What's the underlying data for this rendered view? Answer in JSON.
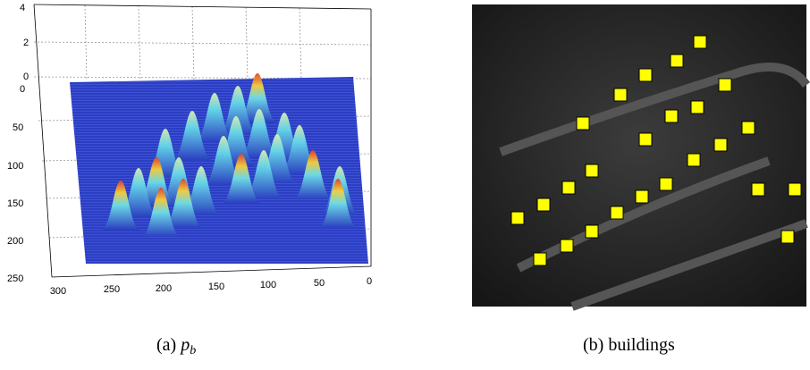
{
  "panel_a": {
    "z_ticks": [
      "4",
      "2",
      "0"
    ],
    "y_ticks": [
      "0",
      "50",
      "100",
      "150",
      "200",
      "250"
    ],
    "x_ticks": [
      "300",
      "250",
      "200",
      "150",
      "100",
      "50",
      "0"
    ],
    "caption": {
      "label": "(a)",
      "symbol": "p",
      "subscript": "b"
    }
  },
  "panel_b": {
    "caption": {
      "label": "(b)",
      "text": "buildings"
    }
  }
}
